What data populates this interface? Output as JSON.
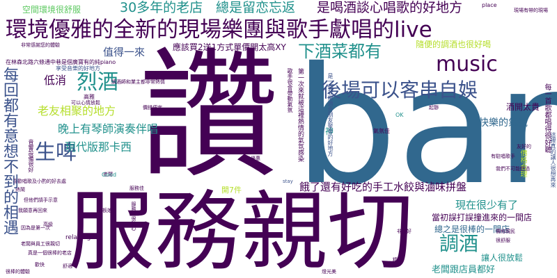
{
  "palette": {
    "background": "#ffffff",
    "dark_purple": "#440154",
    "indigo": "#3b528b",
    "teal_blue": "#31688e",
    "teal": "#21918c",
    "green": "#5ec962",
    "yellow_green": "#b5de2b",
    "yellow": "#fde725"
  },
  "words": {
    "zan": "讚",
    "bar": "bar",
    "fuwu_qinqie": "服務親切",
    "huanjing_youya": "環境優雅的全新的現場樂團與歌手獻唱的live",
    "music": "music",
    "houchang": "後場可以客串自娛",
    "xiajiucai": "下酒菜都有",
    "liejiu": "烈酒",
    "shengpi": "生啤",
    "tiaojiu": "調酒",
    "meihui_youyi": "每回都有意想不到的相遇",
    "lao_you": "老友相聚的地方",
    "wanshang_qinshi": "晚上有琴師演奏伴唱",
    "xiandai_bankaxi": "現代版那卡西",
    "zhide_yilai": "值得一來",
    "dixiao": "低消",
    "yinggai_mai": "應該買2送1方式單價開太高XY",
    "sanshi_lao_dian": "30多年的老店",
    "zongshi_liulian": "總是留恋忘返",
    "shi_hejiu": "是喝酒談心唱歌的好地方",
    "kongjian": "空間環境很舒服",
    "suibian_tiaojiu": "隨便的調酒也很好喝",
    "jiukai_taigui": "酒開太貴",
    "kuaile_qifen": "快樂的氣氛",
    "e_le": "餓了還有好吃的手工水餃與滷味拼盤",
    "xianzai_henshao": "現在很少有了",
    "dangchu": "當初誤打誤撞進來的一間店",
    "zongzhi_henbang": "總之是很棒的一間店",
    "rang_ren_fangsong": "讓人很放鬆",
    "laoban_dianyuan": "老闆跟店員都好",
    "kai_7_jian": "開7件",
    "place": "place",
    "xianchang_re": "現場有帶的現場",
    "feichang_ganxie": "非常感謝您的體驗",
    "xingye_piano": "在林森北路六條通中巷是個廣寶有的純piano",
    "kexiang": "享受音樂的好地方",
    "tiaojiu_shi": "調酒師和業主都非常熱情",
    "gaoya": "高雅",
    "keyi_xinqing": "可以心情放鬆",
    "jiage_pianyi": "價錢便宜",
    "xiandai_qing": "現代情懷",
    "feichang_qingjie": "非常的清潔",
    "shen": "神",
    "qifenjia": "氣氛佳",
    "ok": "OK",
    "qijing": "起靜",
    "xiao_erlai": "小而美",
    "youxie_jiuzhu": "有駐唱歌手",
    "youhao": "友好的",
    "women_bukeneng": "我們不可能錯過",
    "youhui": "優惠",
    "stay": "stay",
    "laoban": "老闆",
    "xihuan_changge": "喜歡唱歌及小酌的好去處",
    "taipo": "熱鬧",
    "good": "Good",
    "fuwujia": "服務佳",
    "dan_tamen": "但他們請手示意",
    "wo_yuan": "我願意再回來",
    "gaoji": "高級",
    "laobanniang": "老板娘",
    "yinwei_shi": "因為是第一次",
    "relaxing": "relaxing",
    "laoban_jiaren": "老闆與員工很親切",
    "zhenshi_lao": "真是一個很棒的老店",
    "feichang_hao": "非常好",
    "jiage_meili": "價格親民",
    "henshufu": "很舒服",
    "huankuai": "歡快",
    "shufu": "舒適",
    "henbang_tiyan": "很棒的體驗",
    "yanguang": "燈光美",
    "jingcai": "精彩",
    "v_mid1": "第一次來就被這裡熱情的氣氛感染",
    "v_mid2": "是一個非常適合朋友聚會的好地方",
    "v_mid3": "歌手很會帶動氣氛",
    "v_right1": "每一首歌都唱得很好聽",
    "v_right2": "這裡真的讓人很想再來",
    "v_left_small": "音響設備很好",
    "v_right_small": "價格合理",
    "v_left_mini": "服務生很貼心"
  }
}
